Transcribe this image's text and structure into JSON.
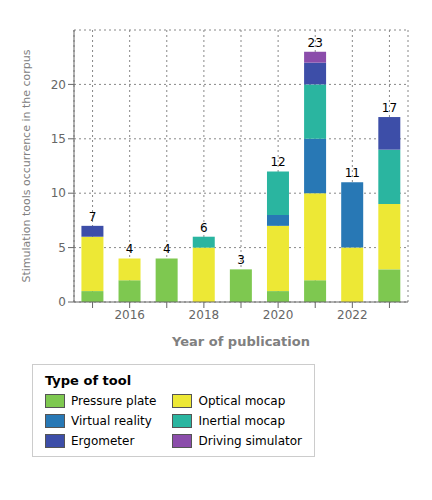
{
  "chart_data": {
    "type": "bar",
    "stacked": true,
    "grid": true,
    "legend": "bottom",
    "xlabel": "Year of publication",
    "ylabel": "Stimulation tools occurrence in the corpus",
    "legend_title": "Type of tool",
    "categories": [
      null,
      "2016",
      null,
      "2018",
      null,
      "2020",
      null,
      "2022",
      null
    ],
    "series": [
      {
        "name": "Pressure plate",
        "color": "#7EC850",
        "values": [
          1,
          2,
          4,
          0,
          3,
          1,
          2,
          0,
          3
        ]
      },
      {
        "name": "Optical mocap",
        "color": "#EDE835",
        "values": [
          5,
          2,
          0,
          5,
          0,
          6,
          8,
          5,
          6
        ]
      },
      {
        "name": "Virtual reality",
        "color": "#2878B5",
        "values": [
          0,
          0,
          0,
          0,
          0,
          1,
          5,
          6,
          0
        ]
      },
      {
        "name": "Inertial mocap",
        "color": "#2AB5A0",
        "values": [
          0,
          0,
          0,
          1,
          0,
          4,
          5,
          0,
          5
        ]
      },
      {
        "name": "Ergometer",
        "color": "#3D4EA8",
        "values": [
          1,
          0,
          0,
          0,
          0,
          0,
          2,
          0,
          3
        ]
      },
      {
        "name": "Driving simulator",
        "color": "#8B4DAB",
        "values": [
          0,
          0,
          0,
          0,
          0,
          0,
          1,
          0,
          0
        ]
      }
    ],
    "totals": [
      7,
      4,
      4,
      6,
      3,
      12,
      23,
      11,
      17
    ],
    "ylim": [
      0,
      25
    ],
    "yticks": [
      0,
      5,
      10,
      15,
      20
    ]
  }
}
